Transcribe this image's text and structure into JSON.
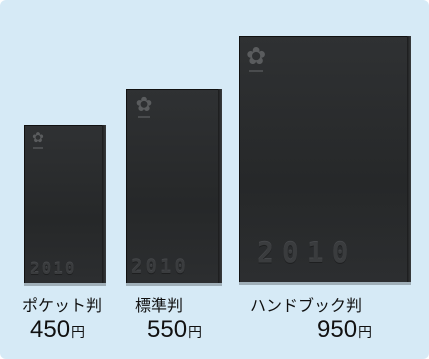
{
  "planners": [
    {
      "name": "ポケット判",
      "price": "450",
      "currency": "円",
      "cover_year": "2010"
    },
    {
      "name": "標準判",
      "price": "550",
      "currency": "円",
      "cover_year": "2010"
    },
    {
      "name": "ハンドブック判",
      "price": "950",
      "currency": "円",
      "cover_year": "2010"
    }
  ],
  "colors": {
    "background": "#d6eaf6",
    "cover": "#2b2d2f",
    "text": "#111111"
  },
  "icons": {
    "cover_emblem": "flower-emblem-icon"
  }
}
